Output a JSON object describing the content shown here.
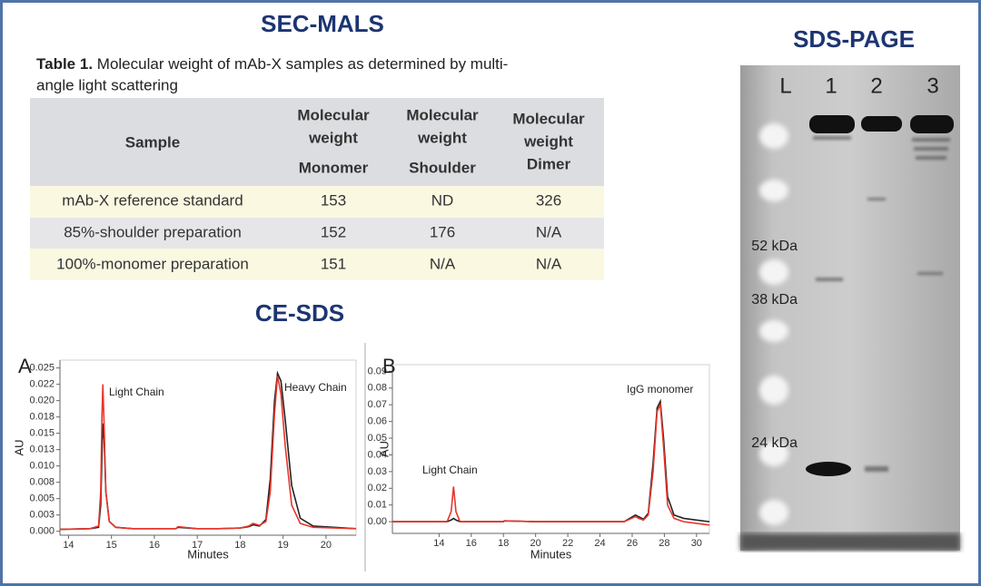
{
  "sec_mals": {
    "title": "SEC-MALS",
    "caption_label": "Table 1.",
    "caption_lines": [
      "Molecular weight of mAb-X samples as determined by multi-",
      "angle light scattering"
    ],
    "table": {
      "header": [
        [
          "Sample"
        ],
        [
          "Molecular",
          "weight",
          "Monomer"
        ],
        [
          "Molecular",
          "weight",
          "Shoulder"
        ],
        [
          "Molecular",
          "weight",
          "Dimer"
        ]
      ],
      "rows": [
        [
          "mAb-X reference standard",
          "153",
          "ND",
          "326"
        ],
        [
          "85%-shoulder preparation",
          "152",
          "176",
          "N/A"
        ],
        [
          "100%-monomer preparation",
          "151",
          "N/A",
          "N/A"
        ]
      ]
    }
  },
  "ce_sds_title": "CE-SDS",
  "chart_data": [
    {
      "type": "line",
      "panel": "A",
      "xlabel": "Minutes",
      "ylabel": "AU",
      "x": [
        13.8,
        14.5,
        14.7,
        14.75,
        14.78,
        14.8,
        14.83,
        14.87,
        14.95,
        15.1,
        15.5,
        16.0,
        16.5,
        16.55,
        17.0,
        17.5,
        18.0,
        18.2,
        18.3,
        18.45,
        18.6,
        18.7,
        18.8,
        18.87,
        18.95,
        19.05,
        19.2,
        19.4,
        19.7,
        20.7
      ],
      "series": [
        {
          "color": "#222222",
          "values": [
            0.0003,
            0.0004,
            0.0006,
            0.004,
            0.012,
            0.0165,
            0.014,
            0.006,
            0.0015,
            0.0006,
            0.0004,
            0.0004,
            0.0004,
            0.0006,
            0.0004,
            0.0004,
            0.0005,
            0.0007,
            0.001,
            0.0008,
            0.0018,
            0.008,
            0.02,
            0.0242,
            0.023,
            0.017,
            0.007,
            0.002,
            0.0008,
            0.0004
          ]
        },
        {
          "color": "#e8352b",
          "values": [
            0.0003,
            0.0004,
            0.0008,
            0.006,
            0.018,
            0.0225,
            0.016,
            0.006,
            0.0015,
            0.0006,
            0.0004,
            0.0004,
            0.0004,
            0.0007,
            0.0004,
            0.0004,
            0.0005,
            0.0008,
            0.0012,
            0.0009,
            0.0015,
            0.006,
            0.018,
            0.0238,
            0.021,
            0.013,
            0.004,
            0.0012,
            0.0006,
            0.0004
          ]
        }
      ],
      "annotations": [
        "Light Chain",
        "Heavy Chain"
      ],
      "xlim": [
        13.8,
        20.7
      ],
      "xticks": [
        14,
        15,
        16,
        17,
        18,
        19,
        20
      ],
      "ylim": [
        -0.0006,
        0.0262
      ],
      "yticks": [
        {
          "value": 0,
          "label": "0.000"
        },
        {
          "value": 0.0025,
          "label": "0.003"
        },
        {
          "value": 0.005,
          "label": "0.005"
        },
        {
          "value": 0.0075,
          "label": "0.008"
        },
        {
          "value": 0.01,
          "label": "0.010"
        },
        {
          "value": 0.0125,
          "label": "0.013"
        },
        {
          "value": 0.015,
          "label": "0.015"
        },
        {
          "value": 0.0175,
          "label": "0.018"
        },
        {
          "value": 0.02,
          "label": "0.020"
        },
        {
          "value": 0.0225,
          "label": "0.022"
        },
        {
          "value": 0.025,
          "label": "0.025"
        }
      ]
    },
    {
      "type": "line",
      "panel": "B",
      "xlabel": "Minutes",
      "ylabel": "AU",
      "x": [
        11.1,
        13,
        14.5,
        14.75,
        14.9,
        15.05,
        15.3,
        16,
        18,
        18.05,
        20,
        22,
        24,
        25.5,
        26.2,
        26.4,
        26.7,
        27.0,
        27.3,
        27.55,
        27.75,
        27.95,
        28.2,
        28.6,
        29.2,
        30.8
      ],
      "series": [
        {
          "color": "#222222",
          "values": [
            0,
            0,
            0,
            0.001,
            0.002,
            0.001,
            0,
            0,
            0,
            0.0005,
            0,
            0,
            0,
            0,
            0.004,
            0.003,
            0.0015,
            0.005,
            0.035,
            0.068,
            0.072,
            0.05,
            0.015,
            0.004,
            0.002,
            0
          ]
        },
        {
          "color": "#e8352b",
          "values": [
            0,
            0,
            0,
            0.006,
            0.021,
            0.006,
            0,
            0,
            0,
            0.0005,
            0,
            0,
            0,
            0,
            0.003,
            0.002,
            0.001,
            0.004,
            0.03,
            0.066,
            0.07,
            0.045,
            0.01,
            0.002,
            0,
            -0.002
          ]
        }
      ],
      "annotations": [
        "IgG monomer",
        "Light Chain"
      ],
      "xlim": [
        11.1,
        30.8
      ],
      "xticks": [
        14,
        16,
        18,
        20,
        22,
        24,
        26,
        28,
        30
      ],
      "ylim": [
        -0.007,
        0.094
      ],
      "yticks": [
        {
          "value": 0,
          "label": "0.00"
        },
        0.01,
        0.02,
        0.03,
        0.04,
        0.05,
        0.06,
        0.07,
        0.08,
        0.09
      ]
    }
  ],
  "sds_page": {
    "title": "SDS-PAGE",
    "lanes": [
      "L",
      "1",
      "2",
      "3"
    ],
    "markers": [
      "52 kDa",
      "38 kDa",
      "24 kDa"
    ]
  }
}
